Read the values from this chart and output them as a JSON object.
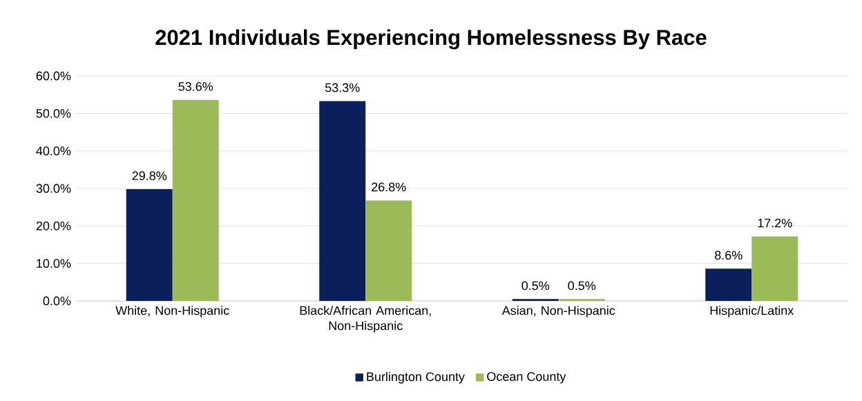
{
  "chart_data": {
    "type": "bar",
    "title": "2021 Individuals Experiencing Homelessness By Race",
    "categories": [
      "White, Non-Hispanic",
      "Black/African American, Non-Hispanic",
      "Asian, Non-Hispanic",
      "Hispanic/Latinx"
    ],
    "series": [
      {
        "name": "Burlington County",
        "color": "#0b1f5c",
        "values": [
          29.8,
          53.3,
          0.5,
          8.6
        ],
        "value_labels": [
          "29.8%",
          "53.3%",
          "0.5%",
          "8.6%"
        ]
      },
      {
        "name": "Ocean County",
        "color": "#9bbb59",
        "values": [
          53.6,
          26.8,
          0.5,
          17.2
        ],
        "value_labels": [
          "53.6%",
          "26.8%",
          "0.5%",
          "17.2%"
        ]
      }
    ],
    "ylim": [
      0,
      60
    ],
    "yticks": [
      {
        "value": 0,
        "label": "0.0%"
      },
      {
        "value": 10,
        "label": "10.0%"
      },
      {
        "value": 20,
        "label": "20.0%"
      },
      {
        "value": 30,
        "label": "30.0%"
      },
      {
        "value": 40,
        "label": "40.0%"
      },
      {
        "value": 50,
        "label": "50.0%"
      },
      {
        "value": 60,
        "label": "60.0%"
      }
    ],
    "grid": "y",
    "legend": "bottom"
  }
}
